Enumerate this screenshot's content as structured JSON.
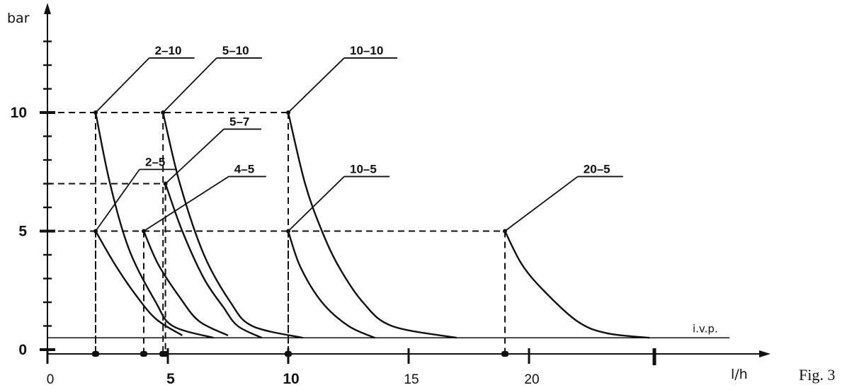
{
  "figure_caption": "Fig. 3",
  "chart_data": {
    "type": "line",
    "title": "",
    "xlabel": "l/h",
    "ylabel": "bar",
    "xlim": [
      0,
      30
    ],
    "ylim": [
      0,
      14.5
    ],
    "x_ticks": [
      {
        "value": 0,
        "label": "0",
        "bold": false
      },
      {
        "value": 5,
        "label": "5",
        "bold": true
      },
      {
        "value": 10,
        "label": "10",
        "bold": true
      },
      {
        "value": 15,
        "label": "15",
        "bold": false
      },
      {
        "value": 20,
        "label": "20",
        "bold": false
      }
    ],
    "y_ticks": [
      {
        "value": 0,
        "label": "0"
      },
      {
        "value": 5,
        "label": "5"
      },
      {
        "value": 10,
        "label": "10"
      }
    ],
    "reference_lines": [
      {
        "name": "i.v.p.",
        "y": 0.5
      }
    ],
    "series": [
      {
        "name": "2-10",
        "label": "2–10",
        "label_at": [
          4.4,
          12.3
        ],
        "points": [
          [
            2,
            10
          ],
          [
            2.6,
            7
          ],
          [
            3.4,
            4.2
          ],
          [
            4.5,
            2
          ],
          [
            5.2,
            1
          ],
          [
            6.9,
            0.5
          ]
        ]
      },
      {
        "name": "2-5",
        "label": "2–5",
        "label_at": [
          4.0,
          7.6
        ],
        "points": [
          [
            2,
            5
          ],
          [
            2.8,
            3.6
          ],
          [
            3.6,
            2.4
          ],
          [
            4.5,
            1.3
          ],
          [
            5.6,
            0.6
          ]
        ]
      },
      {
        "name": "5-10",
        "label": "5–10",
        "label_at": [
          7.2,
          12.3
        ],
        "points": [
          [
            4.8,
            10
          ],
          [
            5.5,
            7
          ],
          [
            6.5,
            4
          ],
          [
            7.6,
            2
          ],
          [
            8.5,
            1
          ],
          [
            10.6,
            0.5
          ]
        ]
      },
      {
        "name": "5-7",
        "label": "5–7",
        "label_at": [
          7.5,
          9.3
        ],
        "points": [
          [
            4.9,
            7
          ],
          [
            5.6,
            5
          ],
          [
            6.5,
            3
          ],
          [
            7.3,
            1.8
          ],
          [
            7.9,
            1
          ],
          [
            8.9,
            0.5
          ]
        ]
      },
      {
        "name": "4-5",
        "label": "4–5",
        "label_at": [
          7.7,
          7.3
        ],
        "points": [
          [
            4,
            5
          ],
          [
            4.6,
            3.6
          ],
          [
            5.5,
            2.2
          ],
          [
            6.3,
            1.2
          ],
          [
            7.5,
            0.6
          ]
        ]
      },
      {
        "name": "10-10",
        "label": "10–10",
        "label_at": [
          12.5,
          12.3
        ],
        "points": [
          [
            10,
            10
          ],
          [
            10.7,
            7
          ],
          [
            11.4,
            5
          ],
          [
            12.1,
            3.5
          ],
          [
            13.1,
            2
          ],
          [
            14.3,
            1
          ],
          [
            17,
            0.5
          ]
        ]
      },
      {
        "name": "10-5",
        "label": "10–5",
        "label_at": [
          12.5,
          7.3
        ],
        "points": [
          [
            10,
            5
          ],
          [
            10.5,
            3.5
          ],
          [
            11.4,
            2
          ],
          [
            12.5,
            1
          ],
          [
            13.6,
            0.5
          ]
        ]
      },
      {
        "name": "20-5",
        "label": "20–5",
        "label_at": [
          22.2,
          7.3
        ],
        "points": [
          [
            19,
            5
          ],
          [
            19.7,
            3.6
          ],
          [
            20.6,
            2.5
          ],
          [
            22,
            1.2
          ],
          [
            23.2,
            0.7
          ],
          [
            25,
            0.5
          ]
        ]
      }
    ],
    "dashed_guides": [
      {
        "x": 2,
        "y": 10
      },
      {
        "x": 4.8,
        "y": 10
      },
      {
        "x": 10,
        "y": 10
      },
      {
        "x": 4.9,
        "y": 7
      },
      {
        "x": 2,
        "y": 5
      },
      {
        "x": 4,
        "y": 5
      },
      {
        "x": 10,
        "y": 5
      },
      {
        "x": 19,
        "y": 5
      }
    ]
  }
}
